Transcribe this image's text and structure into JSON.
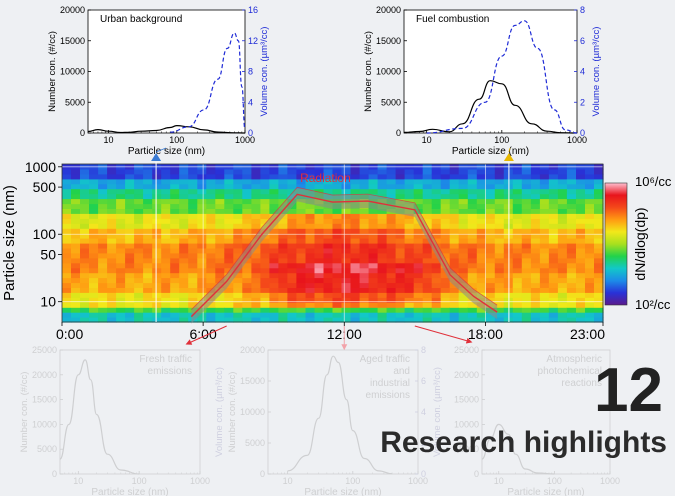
{
  "highlight": {
    "number": "12",
    "title": "Research highlights"
  },
  "colors": {
    "number_axis": "#000000",
    "volume_axis": "#1f2bd6",
    "radiation": "#e0303a",
    "faded": "#c8c8c8"
  },
  "chart_data": [
    {
      "type": "line",
      "panel": "top-left",
      "annotation": "Urban background",
      "xlabel": "Particle size (nm)",
      "xscale": "log",
      "xlim": [
        5,
        1000
      ],
      "xticks": [
        {
          "v": 10,
          "t": "10"
        },
        {
          "v": 100,
          "t": "100"
        },
        {
          "v": 1000,
          "t": "1000"
        }
      ],
      "ylabel": "Number con. (#/cc)",
      "ylim": [
        0,
        20000
      ],
      "yticks": [
        "0",
        "5000",
        "10000",
        "15000",
        "20000"
      ],
      "y2label": "Volume con. (µm³/cc)",
      "y2lim": [
        0,
        16
      ],
      "y2ticks": [
        "0",
        "4",
        "8",
        "12",
        "16"
      ],
      "series": [
        {
          "style": "solid",
          "axis": "left",
          "x": [
            5,
            7,
            10,
            15,
            20,
            30,
            50,
            80,
            100,
            150,
            250,
            400,
            700,
            1000
          ],
          "values": [
            250,
            550,
            300,
            80,
            120,
            300,
            400,
            900,
            1200,
            1000,
            500,
            150,
            30,
            0
          ]
        },
        {
          "style": "dashed",
          "axis": "right",
          "x": [
            80,
            150,
            250,
            400,
            550,
            700,
            800,
            900,
            1000
          ],
          "values": [
            0.1,
            0.8,
            3,
            7,
            11,
            13,
            12,
            6,
            0.5
          ]
        }
      ]
    },
    {
      "type": "line",
      "panel": "top-right",
      "annotation": "Fuel combustion",
      "xlabel": "Particle size (nm)",
      "xscale": "log",
      "xlim": [
        5,
        1000
      ],
      "xticks": [
        {
          "v": 10,
          "t": "10"
        },
        {
          "v": 100,
          "t": "100"
        },
        {
          "v": 1000,
          "t": "1000"
        }
      ],
      "ylabel": "Number con. (#/cc)",
      "ylim": [
        0,
        20000
      ],
      "yticks": [
        "0",
        "5000",
        "10000",
        "15000",
        "20000"
      ],
      "y2label": "Volume con. (µm³/cc)",
      "y2lim": [
        0,
        8
      ],
      "y2ticks": [
        "0",
        "2",
        "4",
        "6",
        "8"
      ],
      "series": [
        {
          "style": "solid",
          "axis": "left",
          "x": [
            5,
            8,
            12,
            20,
            30,
            50,
            70,
            100,
            150,
            250,
            400,
            600,
            1000
          ],
          "values": [
            100,
            250,
            600,
            200,
            1500,
            5500,
            8500,
            8000,
            4500,
            1500,
            300,
            50,
            0
          ]
        },
        {
          "style": "dashed",
          "axis": "right",
          "x": [
            10,
            30,
            60,
            100,
            150,
            200,
            300,
            500,
            700,
            1000
          ],
          "values": [
            0,
            0.3,
            2,
            5,
            7,
            7.3,
            5.5,
            1.5,
            0.2,
            0
          ]
        }
      ]
    },
    {
      "type": "heatmap",
      "panel": "middle",
      "ylabel": "Particle size (nm)",
      "yscale": "log",
      "ylim": [
        5,
        1100
      ],
      "yticks": [
        {
          "v": 10,
          "t": "10"
        },
        {
          "v": 50,
          "t": "50"
        },
        {
          "v": 100,
          "t": "100"
        },
        {
          "v": 500,
          "t": "500"
        },
        {
          "v": 1000,
          "t": "1000"
        }
      ],
      "xlim": [
        0,
        23
      ],
      "xunit": "hour",
      "xticks": [
        {
          "v": 0,
          "t": "0:00"
        },
        {
          "v": 6,
          "t": "6:00"
        },
        {
          "v": 12,
          "t": "12:00"
        },
        {
          "v": 18,
          "t": "18:00"
        },
        {
          "v": 23,
          "t": "23:00"
        }
      ],
      "colorbar_label": "dN/dlog(dp)",
      "colorbar_top": "10⁶/cc",
      "colorbar_bottom": "10²/cc",
      "colorscale": [
        "#5a1a8c",
        "#2832d8",
        "#1c8ce8",
        "#12c8c8",
        "#22d24a",
        "#a8e01e",
        "#f2e81a",
        "#ff9a12",
        "#f4481a",
        "#e8141c",
        "#ffbfd0"
      ],
      "overlay_label": "Radiation",
      "radiation": {
        "hour": [
          5.5,
          7,
          8.5,
          10,
          11.5,
          13,
          15,
          16.5,
          17.5,
          18.5
        ],
        "size": [
          6,
          20,
          100,
          390,
          300,
          310,
          230,
          25,
          12,
          7
        ]
      },
      "markers": [
        {
          "hour": 4,
          "color": "#3a7bd5"
        },
        {
          "hour": 19,
          "color": "#e8b800"
        }
      ]
    },
    {
      "type": "line",
      "panel": "bottom-left",
      "faded": true,
      "annotation": "Fresh traffic emissions",
      "xlabel": "Particle size (nm)",
      "xscale": "log",
      "xlim": [
        5,
        1000
      ],
      "xticks": [
        {
          "v": 10,
          "t": "10"
        },
        {
          "v": 100,
          "t": "100"
        },
        {
          "v": 1000,
          "t": "1000"
        }
      ],
      "ylabel": "Number con. (#/cc)",
      "ylim": [
        0,
        25000
      ],
      "yticks": [
        "0",
        "5000",
        "10000",
        "15000",
        "20000",
        "25000"
      ],
      "y2label": "Volume con. (µm³/cc)",
      "series": [
        {
          "style": "solid",
          "axis": "left",
          "x": [
            5,
            7,
            10,
            13,
            16,
            20,
            30,
            50,
            100
          ],
          "values": [
            3000,
            10000,
            20000,
            23000,
            19000,
            12000,
            4000,
            800,
            0
          ]
        }
      ]
    },
    {
      "type": "line",
      "panel": "bottom-middle",
      "faded": true,
      "annotation": "Aged traffic and industrial emissions",
      "xlabel": "Particle size (nm)",
      "xscale": "log",
      "xlim": [
        5,
        1000
      ],
      "xticks": [
        {
          "v": 10,
          "t": "10"
        },
        {
          "v": 100,
          "t": "100"
        },
        {
          "v": 1000,
          "t": "1000"
        }
      ],
      "ylabel": "Number con. (#/cc)",
      "ylim": [
        0,
        20000
      ],
      "yticks": [
        "0",
        "5000",
        "10000",
        "15000",
        "20000"
      ],
      "y2label": "Volume con. (µm³/cc)",
      "y2lim": [
        0,
        8
      ],
      "y2ticks": [
        "0",
        "2",
        "4",
        "6",
        "8"
      ],
      "series": [
        {
          "style": "solid",
          "axis": "left",
          "x": [
            10,
            20,
            30,
            40,
            50,
            60,
            80,
            100,
            150,
            250,
            400
          ],
          "values": [
            500,
            3000,
            9000,
            16000,
            19000,
            18000,
            12000,
            7000,
            2500,
            500,
            50
          ]
        }
      ]
    },
    {
      "type": "line",
      "panel": "bottom-right",
      "faded": true,
      "annotation": "Atmospheric photochemical reactions",
      "xlabel": "Particle size (nm)",
      "xscale": "log",
      "xlim": [
        5,
        1000
      ],
      "xticks": [
        {
          "v": 10,
          "t": "10"
        },
        {
          "v": 100,
          "t": "100"
        },
        {
          "v": 1000,
          "t": "1000"
        }
      ],
      "ylabel": "",
      "ylim": [
        0,
        25000
      ],
      "yticks": [
        "0",
        "5000",
        "10000",
        "15000",
        "20000",
        "25000"
      ],
      "y2label": "",
      "series": [
        {
          "style": "solid",
          "axis": "left",
          "x": [
            5,
            7,
            10,
            15,
            20,
            30,
            50,
            100
          ],
          "values": [
            3000,
            7000,
            10000,
            8000,
            4000,
            1000,
            200,
            0
          ]
        }
      ]
    }
  ]
}
